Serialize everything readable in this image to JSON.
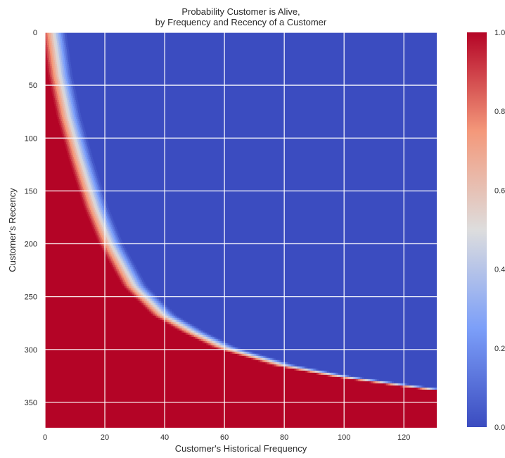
{
  "chart_data": {
    "type": "heatmap",
    "title": "Probability Customer is Alive,\nby Frequency and Recency of a Customer",
    "title_lines": [
      "Probability Customer is Alive,",
      "by Frequency and Recency of a Customer"
    ],
    "xlabel": "Customer's Historical Frequency",
    "ylabel": "Customer's Recency",
    "xlim": [
      0,
      131
    ],
    "ylim": [
      374,
      0
    ],
    "y_axis_inverted": true,
    "x_ticks": [
      0,
      20,
      40,
      60,
      80,
      100,
      120
    ],
    "y_ticks": [
      0,
      50,
      100,
      150,
      200,
      250,
      300,
      350
    ],
    "grid": true,
    "colormap": "coolwarm",
    "colorbar": {
      "vmin": 0.0,
      "vmax": 1.0,
      "ticks": [
        "0.0",
        "0.2",
        "0.4",
        "0.6",
        "0.8",
        "1.0"
      ]
    },
    "boundary_p50": [
      {
        "x": 3,
        "y": 0
      },
      {
        "x": 5,
        "y": 40
      },
      {
        "x": 8,
        "y": 80
      },
      {
        "x": 12,
        "y": 120
      },
      {
        "x": 17,
        "y": 165
      },
      {
        "x": 22,
        "y": 200
      },
      {
        "x": 30,
        "y": 240
      },
      {
        "x": 40,
        "y": 268
      },
      {
        "x": 50,
        "y": 284
      },
      {
        "x": 60,
        "y": 298
      },
      {
        "x": 80,
        "y": 315
      },
      {
        "x": 100,
        "y": 326
      },
      {
        "x": 120,
        "y": 334
      },
      {
        "x": 131,
        "y": 338
      }
    ],
    "transition_width_frequency": 4,
    "note_region_high": "red (probability 1.0) below/left of boundary",
    "note_region_low": "blue (probability 0.0) above/right of boundary"
  },
  "colors": {
    "low": "#3b4cc0",
    "mid": "#dddddd",
    "high": "#b40426",
    "grid": "#ffffff",
    "axis_text": "#2b2b2b"
  }
}
